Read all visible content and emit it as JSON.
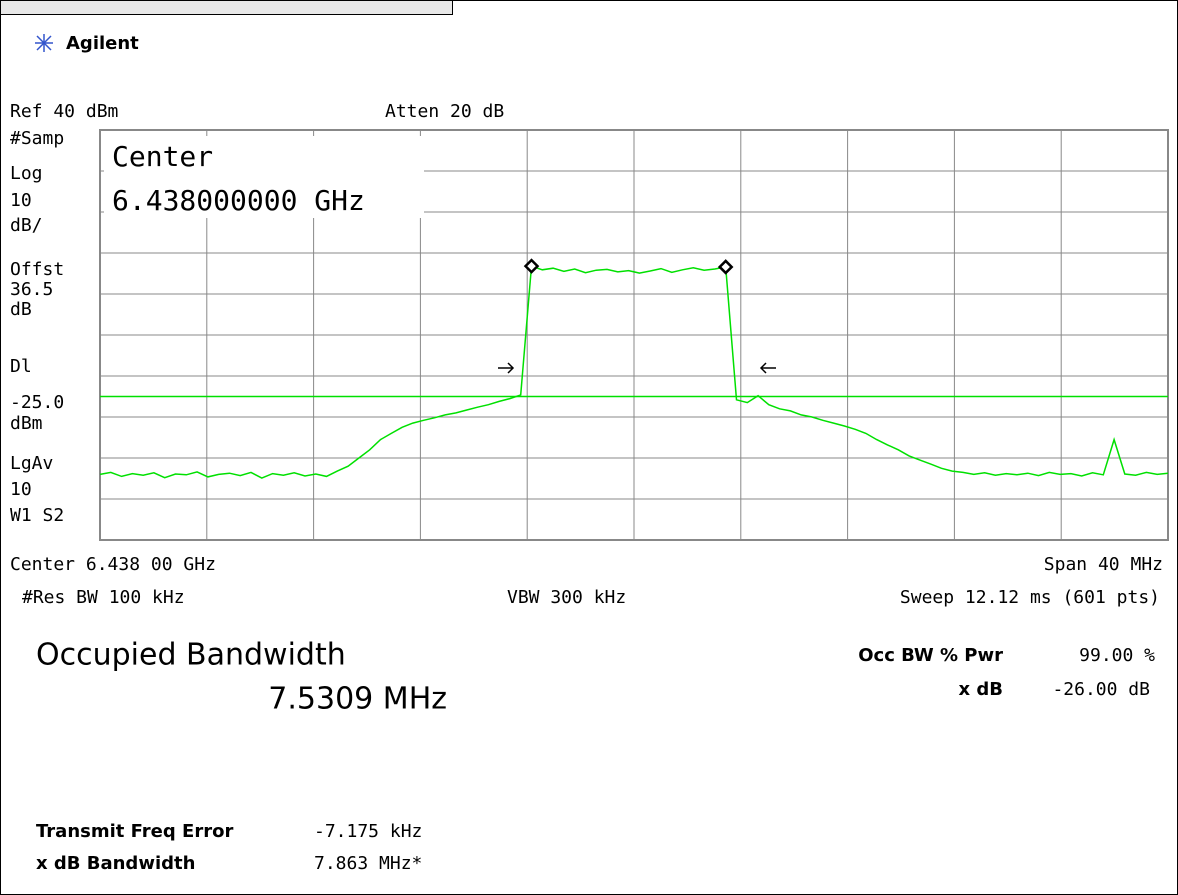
{
  "brand": "Agilent",
  "header": {
    "ref": "Ref 40 dBm",
    "atten": "Atten 20 dB"
  },
  "side_labels": [
    "#Samp",
    "Log",
    "10",
    "dB/",
    "Offst",
    "36.5",
    "dB",
    "Dl",
    "dBm",
    "LgAv",
    "10",
    "W1  S2"
  ],
  "center_box": {
    "label": "Center",
    "value": "6.438000000 GHz"
  },
  "footer": {
    "center": "Center 6.438 00 GHz",
    "span": "Span 40 MHz",
    "rbw": "#Res BW 100 kHz",
    "vbw": "VBW 300 kHz",
    "sweep": "Sweep 12.12 ms (601 pts)"
  },
  "results": {
    "title": "Occupied Bandwidth",
    "value": "7.5309 MHz",
    "params": [
      {
        "label": "Occ BW % Pwr",
        "value": "99.00 %"
      },
      {
        "label": "x dB",
        "value": "-26.00 dB"
      }
    ],
    "extra": [
      {
        "label": "Transmit Freq Error",
        "value": "-7.175 kHz"
      },
      {
        "label": "x dB Bandwidth",
        "value": "7.863 MHz*"
      }
    ]
  },
  "chart_data": {
    "type": "line",
    "color": "#00e000",
    "ylim": [
      -60,
      40
    ],
    "yticks": [
      -60,
      -50,
      -40,
      -30,
      -20,
      -10,
      0,
      10,
      20,
      30,
      40
    ],
    "grid": true,
    "display_line": {
      "value": -25,
      "label": "-25.0"
    },
    "markers": [
      40,
      58
    ],
    "values": [
      -44,
      -43.5,
      -44.5,
      -43.8,
      -44.2,
      -43.6,
      -44.8,
      -43.9,
      -44.1,
      -43.4,
      -44.6,
      -44,
      -43.7,
      -44.3,
      -43.5,
      -44.9,
      -43.8,
      -44.2,
      -43.6,
      -44.4,
      -43.9,
      -44.5,
      -43.2,
      -42,
      -40,
      -38,
      -35.5,
      -34,
      -32.5,
      -31.5,
      -30.8,
      -30.2,
      -29.5,
      -29,
      -28.3,
      -27.6,
      -27,
      -26.2,
      -25.5,
      -24.6,
      6.8,
      5.9,
      6.3,
      5.5,
      6.1,
      5.2,
      5.8,
      6.0,
      5.4,
      5.7,
      5.1,
      5.6,
      6.2,
      5.3,
      5.9,
      6.4,
      5.8,
      6.1,
      6.6,
      -25.8,
      -26.5,
      -24.8,
      -27,
      -28,
      -28.5,
      -29.5,
      -30,
      -30.8,
      -31.5,
      -32.2,
      -33,
      -34,
      -35.5,
      -36.8,
      -38,
      -39.5,
      -40.5,
      -41.5,
      -42.5,
      -43.2,
      -43.5,
      -44,
      -43.6,
      -44.2,
      -43.8,
      -44.1,
      -43.7,
      -44.3,
      -43.5,
      -44,
      -43.8,
      -44.4,
      -43.6,
      -44.1,
      -35.5,
      -43.9,
      -44.2,
      -43.5,
      -44,
      -43.7
    ]
  }
}
